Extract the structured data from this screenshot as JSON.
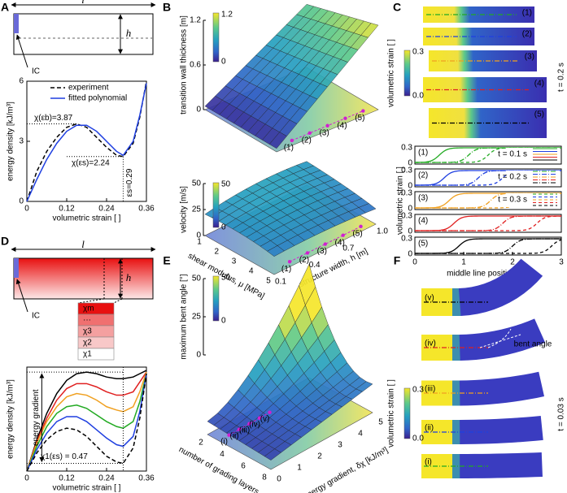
{
  "A": {
    "label": "A",
    "length": "l",
    "height": "h",
    "ic": "IC",
    "chart": {
      "type": "line",
      "x": [
        0,
        0.03,
        0.06,
        0.09,
        0.12,
        0.15,
        0.18,
        0.21,
        0.24,
        0.27,
        0.29,
        0.32,
        0.34,
        0.36
      ],
      "series": [
        {
          "name": "experiment",
          "color": "#000000",
          "dashed": true,
          "values": [
            0,
            1.5,
            2.5,
            3.2,
            3.7,
            3.87,
            3.7,
            3.2,
            2.7,
            2.3,
            2.24,
            2.9,
            4.2,
            6.0
          ]
        },
        {
          "name": "fitted polynomial",
          "color": "#1f3fe0",
          "dashed": false,
          "values": [
            0,
            1.1,
            2.1,
            2.9,
            3.5,
            3.8,
            3.8,
            3.5,
            3.0,
            2.5,
            2.3,
            3.0,
            4.3,
            5.9
          ]
        }
      ],
      "xlim": [
        0,
        0.36
      ],
      "xticks": [
        0,
        0.12,
        0.24,
        0.36
      ],
      "ylim": [
        0,
        6
      ],
      "yticks": [
        0,
        3,
        6
      ],
      "xlabel": "volumetric strain [ ]",
      "ylabel": "energy density [kJ/m³]",
      "annotations": [
        {
          "text": "χ(εb)=3.87",
          "x": 0.15,
          "y": 3.87
        },
        {
          "text": "χ(εs)=2.24",
          "x": 0.29,
          "y": 2.24
        },
        {
          "text": "εs=0.29",
          "x": 0.29,
          "y": 0
        }
      ]
    }
  },
  "B": {
    "label": "B",
    "top": {
      "zlabel": "transition wall thickness [m]",
      "zticks": [
        "1.2",
        "0.6",
        "0"
      ],
      "colorbar": [
        "1.2",
        "0"
      ],
      "points": [
        "(1)",
        "(2)",
        "(3)",
        "(4)",
        "(5)"
      ]
    },
    "bottom": {
      "zlabel": "velocity [m/s]",
      "zticks": [
        "50",
        "25",
        "0"
      ],
      "colorbar": [
        "50",
        "0"
      ],
      "points": [
        "(1)",
        "(2)",
        "(3)",
        "(4)",
        "(5)"
      ],
      "xlabel": "shear modulus, μ [MPa]",
      "xticks": [
        "1",
        "2",
        "3",
        "4",
        "5"
      ],
      "ylabel": "structure width, h [m]",
      "yticks": [
        "0.1",
        "0.4",
        "0.7",
        "1.0"
      ]
    }
  },
  "C": {
    "label": "C",
    "images": {
      "labels": [
        "(1)",
        "(2)",
        "(3)",
        "(4)",
        "(5)"
      ],
      "time": "t = 0.2 s",
      "colorbar": [
        "0.3",
        "0.0"
      ],
      "cblabel": "volumetric strain [ ]"
    },
    "plots": {
      "labels": [
        "(1)",
        "(2)",
        "(3)",
        "(4)",
        "(5)"
      ],
      "colors": [
        "#22aa22",
        "#1f3fe0",
        "#f0a020",
        "#e02020",
        "#000000"
      ],
      "centers": [
        [
          0.5,
          1.1,
          1.5
        ],
        [
          0.6,
          1.3,
          1.8
        ],
        [
          0.7,
          1.55,
          2.15
        ],
        [
          0.8,
          1.8,
          2.5
        ],
        [
          0.9,
          2.0,
          2.8
        ]
      ],
      "yticks": [
        "0.3",
        "0"
      ],
      "xticks": [
        0,
        1,
        2,
        3
      ],
      "xlim": [
        0,
        3
      ],
      "xlabel": "middle line position [m]",
      "ylabel": "volumetric strain [ ]",
      "legend": [
        "t = 0.1 s",
        "t = 0.2 s",
        "t = 0.3 s"
      ]
    }
  },
  "D": {
    "label": "D",
    "length": "l",
    "height": "h",
    "ic": "IC",
    "layers": [
      "χm",
      "···",
      "χ3",
      "χ2",
      "χ1"
    ],
    "chart": {
      "type": "line",
      "x": [
        0,
        0.03,
        0.06,
        0.09,
        0.12,
        0.15,
        0.18,
        0.21,
        0.24,
        0.27,
        0.29,
        0.32,
        0.34,
        0.36
      ],
      "series": [
        {
          "color": "#000000",
          "dashed": false,
          "values": [
            0,
            1.9,
            3.5,
            4.7,
            5.5,
            5.9,
            6.0,
            5.9,
            5.7,
            5.6,
            5.6,
            5.7,
            5.9,
            6.1
          ]
        },
        {
          "color": "#e02020",
          "dashed": false,
          "values": [
            0,
            1.8,
            3.2,
            4.3,
            5.0,
            5.3,
            5.3,
            5.1,
            4.8,
            4.6,
            4.6,
            4.8,
            5.4,
            6.0
          ]
        },
        {
          "color": "#f0a020",
          "dashed": false,
          "values": [
            0,
            1.7,
            3.0,
            3.9,
            4.5,
            4.7,
            4.6,
            4.3,
            3.9,
            3.7,
            3.6,
            3.9,
            4.8,
            6.0
          ]
        },
        {
          "color": "#22aa22",
          "dashed": false,
          "values": [
            0,
            1.5,
            2.7,
            3.5,
            3.9,
            4.0,
            3.8,
            3.4,
            3.0,
            2.7,
            2.6,
            3.0,
            4.2,
            5.9
          ]
        },
        {
          "color": "#1f3fe0",
          "dashed": false,
          "values": [
            0,
            1.3,
            2.3,
            3.0,
            3.3,
            3.3,
            3.0,
            2.5,
            2.0,
            1.6,
            1.5,
            2.1,
            3.6,
            5.9
          ]
        },
        {
          "color": "#000000",
          "dashed": true,
          "values": [
            0,
            1.1,
            1.9,
            2.4,
            2.6,
            2.5,
            2.1,
            1.5,
            0.9,
            0.55,
            0.47,
            1.4,
            3.2,
            5.9
          ]
        }
      ],
      "xlim": [
        0,
        0.36
      ],
      "xticks": [
        0,
        0.12,
        0.24,
        0.36
      ],
      "ylim": [
        0,
        6.3
      ],
      "xlabel": "volumetric strain [ ]",
      "ylabel": "energy density [kJ/m³]",
      "annotations": [
        {
          "text": "energy gradient"
        },
        {
          "text": "χ1(εs) = 0.47",
          "x": 0.29,
          "y": 0.47
        }
      ]
    }
  },
  "E": {
    "label": "E",
    "zlabel": "maximum bent angle [°]",
    "zticks": [
      "50",
      "25",
      "0"
    ],
    "colorbar": [
      "50",
      "0"
    ],
    "points": [
      "(i)",
      "(ii)",
      "(iii)",
      "(iv)",
      "(v)"
    ],
    "xlabel": "number of grading layers, m",
    "xticks": [
      "2",
      "4",
      "6",
      "8"
    ],
    "ylabel": "energy gradient, δχ [kJ/m³]",
    "yticks": [
      "0",
      "1",
      "2",
      "3",
      "4",
      "5"
    ]
  },
  "F": {
    "label": "F",
    "labels": [
      "(v)",
      "(iv)",
      "(iii)",
      "(ii)",
      "(i)"
    ],
    "annotation": "bent angle",
    "colorbar": [
      "0.3",
      "0.0"
    ],
    "cblabel": "volumetric strain [ ]",
    "time": "t = 0.03 s"
  }
}
